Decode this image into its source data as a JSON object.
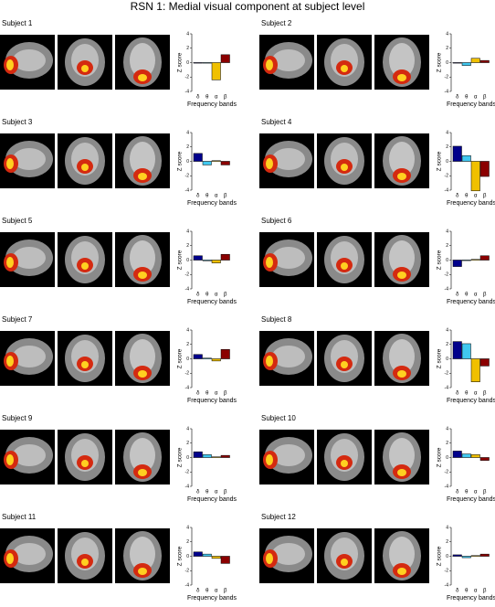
{
  "title": "RSN 1: Medial visual component at subject level",
  "chart_data": [
    {
      "type": "bar",
      "title": "Subject 1",
      "categories": [
        "δ",
        "θ",
        "α",
        "β"
      ],
      "values": [
        0,
        0,
        -2.4,
        1.1
      ],
      "colors": [
        "#00008b",
        "#40c8f0",
        "#f0c000",
        "#8b0000"
      ],
      "ylim": [
        -4,
        4
      ],
      "yticks": [
        -4,
        -2,
        0,
        2,
        4
      ],
      "ylabel": "Z score",
      "xlabel": "Frequency bands"
    },
    {
      "type": "bar",
      "title": "Subject 2",
      "categories": [
        "δ",
        "θ",
        "α",
        "β"
      ],
      "values": [
        0,
        -0.4,
        0.6,
        0.3
      ],
      "colors": [
        "#00008b",
        "#40c8f0",
        "#f0c000",
        "#8b0000"
      ],
      "ylim": [
        -4,
        4
      ],
      "yticks": [
        -4,
        -2,
        0,
        2,
        4
      ],
      "ylabel": "Z score",
      "xlabel": "Frequency bands"
    },
    {
      "type": "bar",
      "title": "Subject 3",
      "categories": [
        "δ",
        "θ",
        "α",
        "β"
      ],
      "values": [
        1.1,
        -0.5,
        0.1,
        -0.5
      ],
      "colors": [
        "#00008b",
        "#40c8f0",
        "#f0c000",
        "#8b0000"
      ],
      "ylim": [
        -4,
        4
      ],
      "yticks": [
        -4,
        -2,
        0,
        2,
        4
      ],
      "ylabel": "Z score",
      "xlabel": "Frequency bands"
    },
    {
      "type": "bar",
      "title": "Subject 4",
      "categories": [
        "δ",
        "θ",
        "α",
        "β"
      ],
      "values": [
        2.1,
        0.8,
        -4.1,
        -2.1
      ],
      "colors": [
        "#00008b",
        "#40c8f0",
        "#f0c000",
        "#8b0000"
      ],
      "ylim": [
        -4,
        4
      ],
      "yticks": [
        -4,
        -2,
        0,
        2,
        4
      ],
      "ylabel": "Z score",
      "xlabel": "Frequency bands"
    },
    {
      "type": "bar",
      "title": "Subject 5",
      "categories": [
        "δ",
        "θ",
        "α",
        "β"
      ],
      "values": [
        0.6,
        -0.1,
        -0.4,
        0.8
      ],
      "colors": [
        "#00008b",
        "#40c8f0",
        "#f0c000",
        "#8b0000"
      ],
      "ylim": [
        -4,
        4
      ],
      "yticks": [
        -4,
        -2,
        0,
        2,
        4
      ],
      "ylabel": "Z score",
      "xlabel": "Frequency bands"
    },
    {
      "type": "bar",
      "title": "Subject 6",
      "categories": [
        "δ",
        "θ",
        "α",
        "β"
      ],
      "values": [
        -0.9,
        0,
        0.1,
        0.6
      ],
      "colors": [
        "#00008b",
        "#40c8f0",
        "#f0c000",
        "#8b0000"
      ],
      "ylim": [
        -4,
        4
      ],
      "yticks": [
        -4,
        -2,
        0,
        2,
        4
      ],
      "ylabel": "Z score",
      "xlabel": "Frequency bands"
    },
    {
      "type": "bar",
      "title": "Subject 7",
      "categories": [
        "δ",
        "θ",
        "α",
        "β"
      ],
      "values": [
        0.6,
        0.1,
        -0.3,
        1.3
      ],
      "colors": [
        "#00008b",
        "#40c8f0",
        "#f0c000",
        "#8b0000"
      ],
      "ylim": [
        -4,
        4
      ],
      "yticks": [
        -4,
        -2,
        0,
        2,
        4
      ],
      "ylabel": "Z score",
      "xlabel": "Frequency bands"
    },
    {
      "type": "bar",
      "title": "Subject 8",
      "categories": [
        "δ",
        "θ",
        "α",
        "β"
      ],
      "values": [
        2.4,
        2.1,
        -3.2,
        -1.0
      ],
      "colors": [
        "#00008b",
        "#40c8f0",
        "#f0c000",
        "#8b0000"
      ],
      "ylim": [
        -4,
        4
      ],
      "yticks": [
        -4,
        -2,
        0,
        2,
        4
      ],
      "ylabel": "Z score",
      "xlabel": "Frequency bands"
    },
    {
      "type": "bar",
      "title": "Subject 9",
      "categories": [
        "δ",
        "θ",
        "α",
        "β"
      ],
      "values": [
        0.8,
        0.4,
        0.1,
        0.3
      ],
      "colors": [
        "#00008b",
        "#40c8f0",
        "#f0c000",
        "#8b0000"
      ],
      "ylim": [
        -4,
        4
      ],
      "yticks": [
        -4,
        -2,
        0,
        2,
        4
      ],
      "ylabel": "Z score",
      "xlabel": "Frequency bands"
    },
    {
      "type": "bar",
      "title": "Subject 10",
      "categories": [
        "δ",
        "θ",
        "α",
        "β"
      ],
      "values": [
        0.9,
        0.5,
        0.4,
        -0.4
      ],
      "colors": [
        "#00008b",
        "#40c8f0",
        "#f0c000",
        "#8b0000"
      ],
      "ylim": [
        -4,
        4
      ],
      "yticks": [
        -4,
        -2,
        0,
        2,
        4
      ],
      "ylabel": "Z score",
      "xlabel": "Frequency bands"
    },
    {
      "type": "bar",
      "title": "Subject 11",
      "categories": [
        "δ",
        "θ",
        "α",
        "β"
      ],
      "values": [
        0.6,
        0.3,
        -0.3,
        -1.0
      ],
      "colors": [
        "#00008b",
        "#40c8f0",
        "#f0c000",
        "#8b0000"
      ],
      "ylim": [
        -4,
        4
      ],
      "yticks": [
        -4,
        -2,
        0,
        2,
        4
      ],
      "ylabel": "Z score",
      "xlabel": "Frequency bands"
    },
    {
      "type": "bar",
      "title": "Subject 12",
      "categories": [
        "δ",
        "θ",
        "α",
        "β"
      ],
      "values": [
        0.2,
        -0.2,
        0.1,
        0.3
      ],
      "colors": [
        "#00008b",
        "#40c8f0",
        "#f0c000",
        "#8b0000"
      ],
      "ylim": [
        -4,
        4
      ],
      "yticks": [
        -4,
        -2,
        0,
        2,
        4
      ],
      "ylabel": "Z score",
      "xlabel": "Frequency bands"
    }
  ]
}
